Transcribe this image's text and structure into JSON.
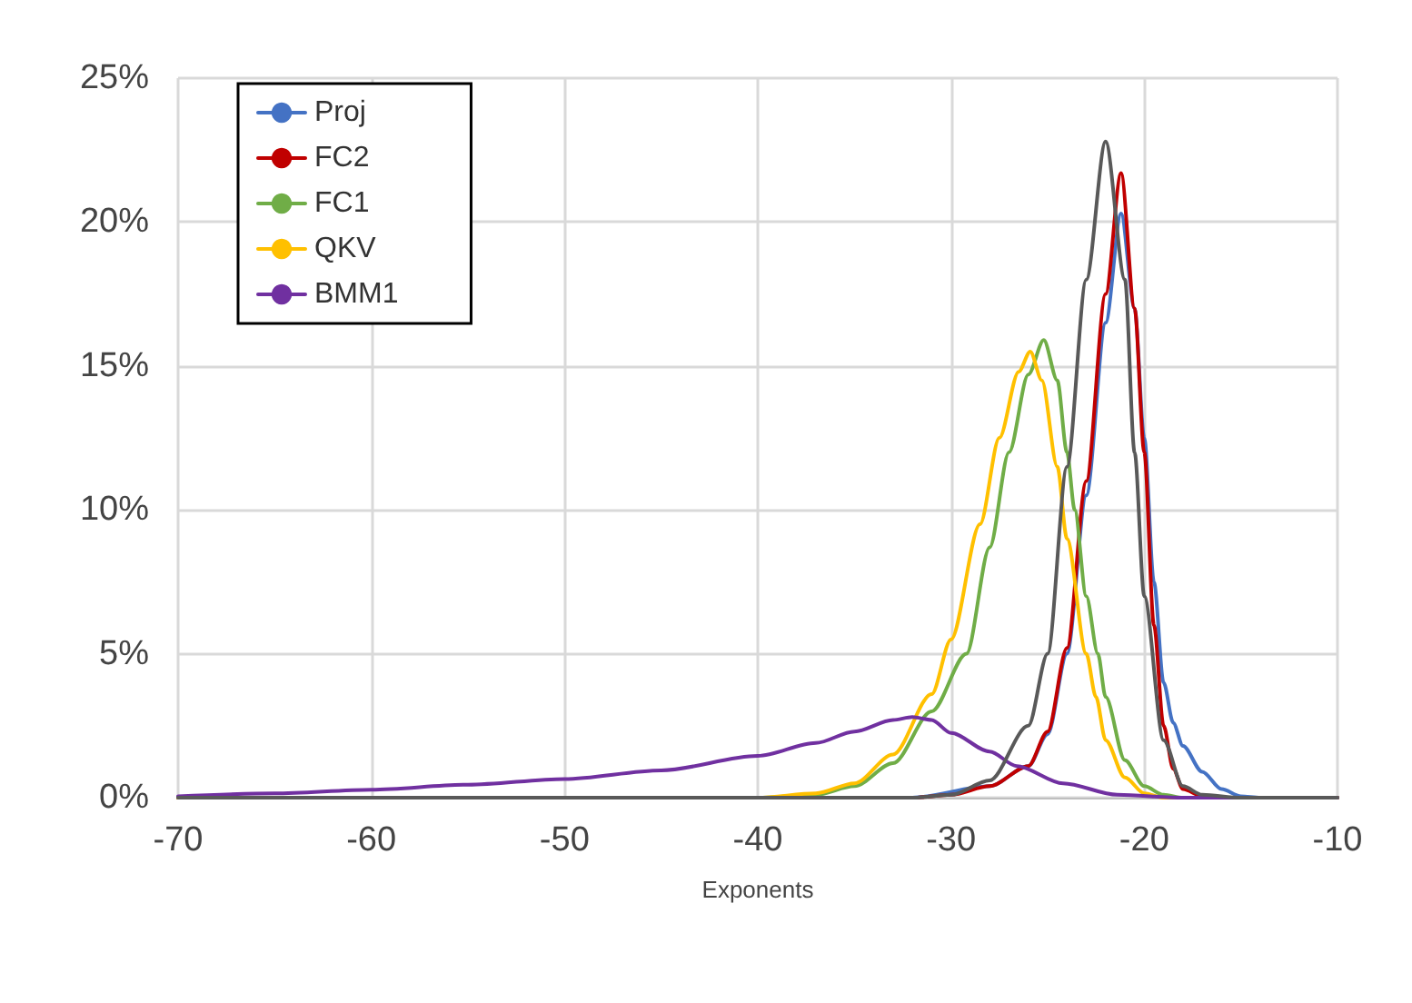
{
  "chart_data": {
    "type": "line",
    "xlabel": "Exponents",
    "xlim": [
      -70,
      -10
    ],
    "xticks": [
      -70,
      -60,
      -50,
      -40,
      -30,
      -20,
      -10
    ],
    "ylim": [
      0,
      25
    ],
    "yticks": [
      {
        "value": 0,
        "label": "0%"
      },
      {
        "value": 5,
        "label": "5%"
      },
      {
        "value": 10,
        "label": "10%"
      },
      {
        "value": 15,
        "label": "15%"
      },
      {
        "value": 20,
        "label": "20%"
      },
      {
        "value": 25,
        "label": "25%"
      }
    ],
    "grid": true,
    "legend": "top left",
    "marker": "none",
    "line_style": "solid",
    "series": [
      {
        "name": "Proj",
        "color": "#4472c4",
        "x": [
          -70,
          -32,
          -28,
          -26,
          -25,
          -24,
          -23,
          -22,
          -21.2,
          -20.5,
          -20,
          -19.5,
          -19,
          -18.5,
          -18,
          -17,
          -16,
          -15,
          -14,
          -10
        ],
        "values": [
          0,
          0,
          0.4,
          1.1,
          2.2,
          5,
          10.5,
          16.5,
          20.3,
          17,
          12.5,
          7.5,
          4,
          2.6,
          1.8,
          0.9,
          0.3,
          0.05,
          0,
          0
        ]
      },
      {
        "name": "FC2",
        "color": "#c00000",
        "x": [
          -70,
          -32,
          -30,
          -28,
          -26,
          -25,
          -24,
          -23,
          -22,
          -21.2,
          -20.5,
          -20,
          -19.5,
          -19,
          -18.5,
          -18,
          -17,
          -16,
          -10
        ],
        "values": [
          0,
          0,
          0.1,
          0.4,
          1.1,
          2.3,
          5.2,
          11,
          17.5,
          21.7,
          17,
          12,
          6,
          2.5,
          1,
          0.3,
          0.05,
          0,
          0
        ]
      },
      {
        "name": "FC1",
        "color": "#70ad47",
        "x": [
          -70,
          -40,
          -37,
          -35,
          -33,
          -31,
          -29.2,
          -28,
          -27,
          -26,
          -25.2,
          -24.5,
          -24,
          -23.6,
          -23,
          -22.4,
          -22,
          -21,
          -20,
          -19,
          -18,
          -10
        ],
        "values": [
          0,
          0,
          0.1,
          0.4,
          1.2,
          3,
          5,
          8.7,
          12,
          14.7,
          15.9,
          14.5,
          12,
          10,
          7,
          5,
          3.5,
          1.3,
          0.4,
          0.1,
          0,
          0
        ]
      },
      {
        "name": "QKV",
        "color": "#ffc000",
        "x": [
          -70,
          -40,
          -37,
          -35,
          -33,
          -31,
          -30,
          -28.5,
          -27.5,
          -26.5,
          -25.9,
          -25.3,
          -24.5,
          -24,
          -23,
          -22.5,
          -22,
          -21,
          -20,
          -19,
          -10
        ],
        "values": [
          0,
          0,
          0.15,
          0.5,
          1.5,
          3.6,
          5.5,
          9.5,
          12.5,
          14.8,
          15.5,
          14.5,
          11.5,
          9,
          5,
          3.5,
          2,
          0.7,
          0.15,
          0,
          0
        ]
      },
      {
        "name": "BMM1",
        "color": "#7030a0",
        "x": [
          -70,
          -65,
          -60,
          -55,
          -50,
          -45,
          -40,
          -37,
          -35,
          -33,
          -32,
          -31,
          -30,
          -28,
          -26.6,
          -24.2,
          -21.4,
          -18,
          -10
        ],
        "values": [
          0.05,
          0.15,
          0.28,
          0.45,
          0.65,
          0.95,
          1.45,
          1.9,
          2.3,
          2.7,
          2.8,
          2.7,
          2.25,
          1.6,
          1.1,
          0.5,
          0.1,
          0,
          0
        ]
      },
      {
        "color": "#595959",
        "x": [
          -70,
          -32,
          -30,
          -28,
          -26,
          -25,
          -24,
          -23,
          -22,
          -21,
          -20.5,
          -20,
          -19,
          -18,
          -17,
          -15,
          -10
        ],
        "values": [
          0,
          0,
          0.1,
          0.6,
          2.5,
          5,
          11.5,
          18,
          22.8,
          18,
          12,
          7,
          2,
          0.4,
          0.1,
          0,
          0
        ]
      }
    ]
  }
}
